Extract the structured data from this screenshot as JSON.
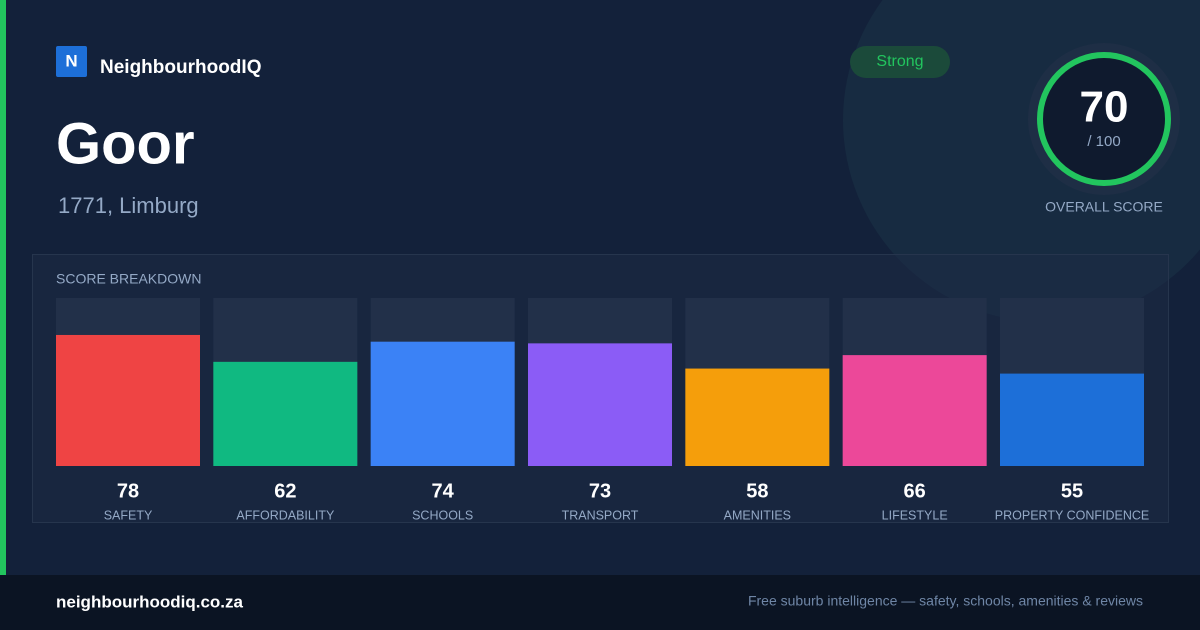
{
  "brand": {
    "logo": "N",
    "name": "NeighbourhoodIQ"
  },
  "header": {
    "title": "Goor",
    "subtitle": "1771, Limburg",
    "badge": "Strong"
  },
  "score": {
    "value": 70,
    "max_label": "/ 100",
    "label": "OVERALL SCORE"
  },
  "chart_data": {
    "type": "bar",
    "title": "SCORE BREAKDOWN",
    "categories": [
      "SAFETY",
      "AFFORDABILITY",
      "SCHOOLS",
      "TRANSPORT",
      "AMENITIES",
      "LIFESTYLE",
      "PROPERTY CONFIDENCE"
    ],
    "values": [
      78,
      62,
      74,
      73,
      58,
      66,
      55
    ],
    "colors": [
      "#ef4444",
      "#10b981",
      "#3b82f6",
      "#8b5cf6",
      "#f59e0b",
      "#ec4899",
      "#1d6fd8"
    ],
    "ylim": [
      0,
      100
    ]
  },
  "footer": {
    "url": "neighbourhoodiq.co.za",
    "tagline": "Free suburb intelligence — safety, schools, amenities & reviews"
  }
}
